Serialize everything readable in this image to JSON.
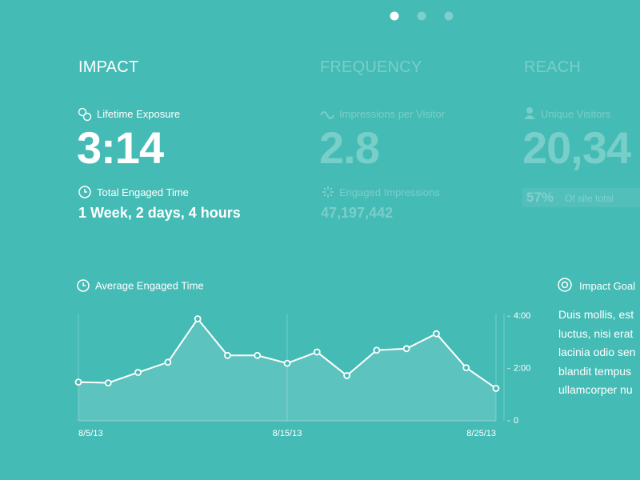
{
  "sections": [
    {
      "title": "IMPACT",
      "metrics": [
        {
          "label": "Lifetime Exposure",
          "value": "3:14"
        },
        {
          "label": "Total Engaged Time",
          "value": "1 Week, 2 days, 4 hours"
        }
      ]
    },
    {
      "title": "FREQUENCY",
      "metrics": [
        {
          "label": "Impressions per Visitor",
          "value": "2.8"
        },
        {
          "label": "Engaged Impressions",
          "value": "47,197,442"
        }
      ]
    },
    {
      "title": "REACH",
      "metrics": [
        {
          "label": "Unique Visitors",
          "value": "20,34"
        },
        {
          "label": "Of site total",
          "value": "57%"
        }
      ]
    }
  ],
  "chart_data": {
    "type": "area",
    "title": "Average Engaged Time",
    "categories": [
      "8/5/13",
      null,
      null,
      null,
      null,
      null,
      null,
      "8/15/13",
      null,
      null,
      null,
      null,
      null,
      null,
      "8/25/13"
    ],
    "values": [
      1.48,
      1.45,
      1.85,
      2.24,
      3.9,
      2.5,
      2.5,
      2.2,
      2.63,
      1.73,
      2.7,
      2.76,
      3.33,
      2.03,
      1.24
    ],
    "color": "#ffffff",
    "ylim": [
      0,
      4.1
    ],
    "yticks": [
      0,
      {
        "value": 2,
        "label": "2:00"
      },
      {
        "value": 4,
        "label": "4:00"
      }
    ],
    "grid": true
  },
  "goal": {
    "title": "Impact Goal",
    "lines": [
      "Duis mollis, est",
      "luctus, nisi erat",
      "lacinia odio sen",
      "blandit tempus",
      "ullamcorper nu"
    ]
  }
}
